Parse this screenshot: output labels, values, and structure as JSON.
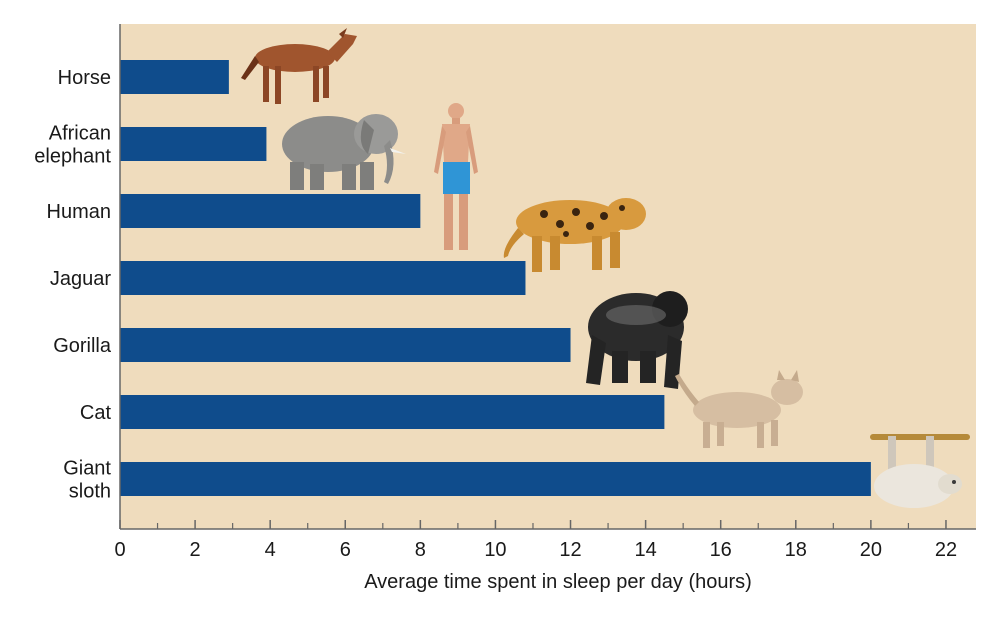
{
  "chart_data": {
    "type": "bar",
    "orientation": "horizontal",
    "categories": [
      "Horse",
      "African elephant",
      "Human",
      "Jaguar",
      "Gorilla",
      "Cat",
      "Giant sloth"
    ],
    "category_lines": [
      [
        "Horse"
      ],
      [
        "African",
        "elephant"
      ],
      [
        "Human"
      ],
      [
        "Jaguar"
      ],
      [
        "Gorilla"
      ],
      [
        "Cat"
      ],
      [
        "Giant",
        "sloth"
      ]
    ],
    "values": [
      2.9,
      3.9,
      8.0,
      10.8,
      12.0,
      14.5,
      20.0
    ],
    "xlabel": "Average time spent in sleep per day (hours)",
    "ylabel": "",
    "xlim": [
      0,
      22.8
    ],
    "xticks": [
      0,
      2,
      4,
      6,
      8,
      10,
      12,
      14,
      16,
      18,
      20,
      22
    ],
    "grid": false,
    "colors": {
      "bar": "#0f4c8c",
      "plot_background": "#efdcbd",
      "axis": "#666666"
    },
    "illustrations": [
      "horse-icon",
      "elephant-icon",
      "human-icon",
      "jaguar-icon",
      "gorilla-icon",
      "cat-icon",
      "sloth-icon"
    ]
  }
}
